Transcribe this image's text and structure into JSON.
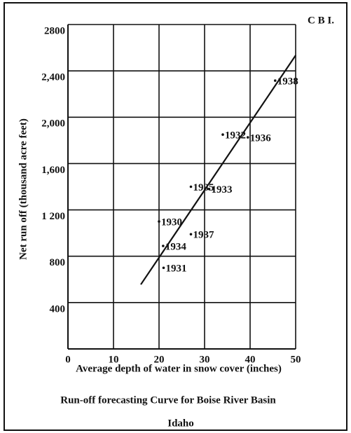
{
  "chart_data": {
    "type": "scatter",
    "title": "Run-off forecasting Curve for Boise River Basin",
    "subtitle": "Idaho",
    "annotation": "C B I.",
    "x_label": "Average depth of water in snow cover (inches)",
    "y_label": "Net run off (thousand acre feet)",
    "xlim": [
      0,
      50
    ],
    "xticks": [
      0,
      10,
      20,
      30,
      40,
      50
    ],
    "ylim": [
      0,
      2800
    ],
    "yticks": [
      {
        "value": 400,
        "label": "400"
      },
      {
        "value": 800,
        "label": "800"
      },
      {
        "value": 1200,
        "label": "1 200"
      },
      {
        "value": 1600,
        "label": "1,600"
      },
      {
        "value": 2000,
        "label": "2,000"
      },
      {
        "value": 2400,
        "label": "2,400"
      },
      {
        "value": 2800,
        "label": "2800"
      }
    ],
    "grid": true,
    "color": "#111111",
    "points": [
      {
        "label": "1938",
        "x": 45.5,
        "y": 2316
      },
      {
        "label": "1936",
        "x": 39.5,
        "y": 1826
      },
      {
        "label": "1932",
        "x": 34,
        "y": 1850
      },
      {
        "label": "1935",
        "x": 27,
        "y": 1400
      },
      {
        "label": "1933",
        "x": 31,
        "y": 1380
      },
      {
        "label": "1930",
        "x": 20,
        "y": 1100
      },
      {
        "label": "1937",
        "x": 27,
        "y": 990
      },
      {
        "label": "1934",
        "x": 20.9,
        "y": 889
      },
      {
        "label": "1931",
        "x": 21,
        "y": 700
      }
    ],
    "fit_line": {
      "x": [
        16,
        50
      ],
      "y": [
        556,
        2534
      ]
    }
  }
}
